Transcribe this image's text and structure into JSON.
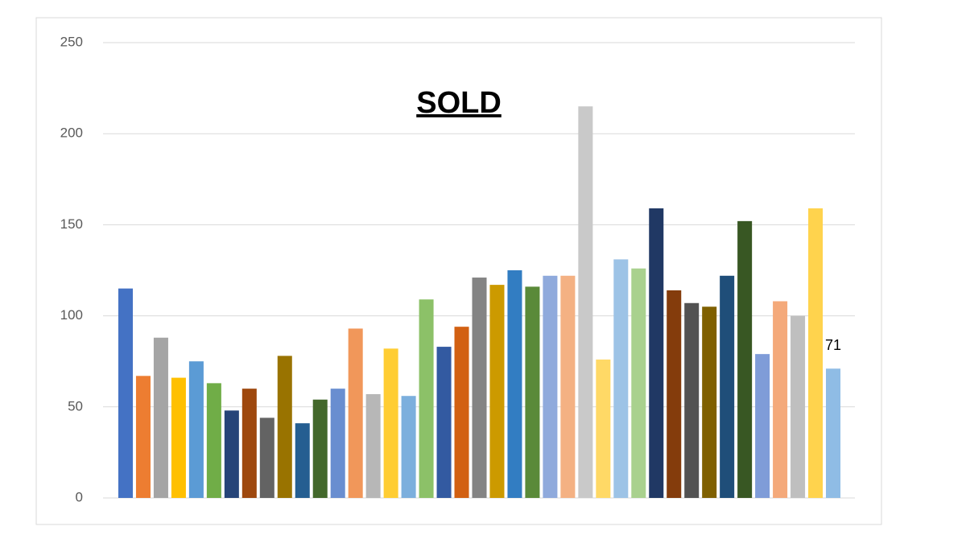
{
  "chart_data": {
    "type": "bar",
    "title": "SOLD",
    "categories": [
      null,
      null,
      null,
      null,
      null,
      null,
      null,
      null,
      null,
      null,
      null,
      null,
      null,
      null,
      null,
      null,
      null,
      null,
      null,
      null,
      null,
      null,
      null,
      null,
      null,
      null,
      null,
      null,
      null,
      null,
      null,
      null,
      null,
      null,
      null,
      null,
      null,
      null,
      null,
      null,
      null
    ],
    "values": [
      115,
      67,
      88,
      66,
      75,
      63,
      48,
      60,
      44,
      78,
      41,
      54,
      60,
      93,
      57,
      82,
      56,
      109,
      83,
      94,
      121,
      117,
      125,
      116,
      122,
      122,
      215,
      76,
      131,
      126,
      159,
      114,
      107,
      105,
      122,
      152,
      79,
      108,
      100,
      159,
      71
    ],
    "value_labels": [
      null,
      null,
      null,
      null,
      null,
      null,
      null,
      null,
      null,
      null,
      null,
      null,
      null,
      null,
      null,
      null,
      null,
      null,
      null,
      null,
      null,
      null,
      null,
      null,
      null,
      null,
      null,
      null,
      null,
      null,
      null,
      null,
      null,
      null,
      null,
      null,
      null,
      null,
      null,
      null,
      "71"
    ],
    "colors": [
      "#4472c4",
      "#ed7d31",
      "#a5a5a5",
      "#ffc000",
      "#5b9bd5",
      "#70ad47",
      "#264478",
      "#9e480e",
      "#636363",
      "#997300",
      "#255e91",
      "#43682b",
      "#698ed0",
      "#f1975a",
      "#b7b7b7",
      "#ffcd33",
      "#7cafdd",
      "#8cc168",
      "#335aa1",
      "#d26012",
      "#848484",
      "#cc9a00",
      "#327dc2",
      "#5a8a39",
      "#8faadc",
      "#f4b183",
      "#c9c9c9",
      "#ffd966",
      "#9dc3e6",
      "#a9d18e",
      "#203864",
      "#843c0c",
      "#525252",
      "#7f6000",
      "#1f4e79",
      "#385723",
      "#7f9cd8",
      "#f4a97a",
      "#bfbfbf",
      "#ffd34d",
      "#8fbce5"
    ],
    "ylim": [
      0,
      250
    ],
    "yticks": [
      0,
      50,
      100,
      150,
      200,
      250
    ],
    "grid": true
  }
}
